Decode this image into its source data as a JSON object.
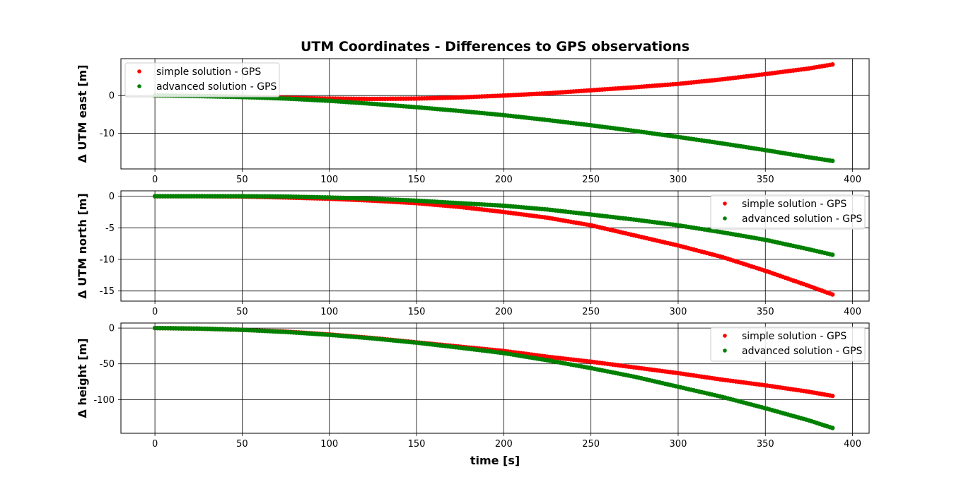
{
  "title": "UTM Coordinates - Differences to GPS observations",
  "xlabel": "time [s]",
  "colors": {
    "simple": "#ff0000",
    "advanced": "#008000",
    "grid": "#000000",
    "frame": "#000000"
  },
  "chart_data": [
    {
      "type": "scatter",
      "ylabel": "Δ UTM east [m]",
      "xlim": [
        -19.5,
        409.5
      ],
      "ylim": [
        -19.5,
        9.8
      ],
      "xticks": [
        0,
        50,
        100,
        150,
        200,
        250,
        300,
        350,
        400
      ],
      "yticks": [
        0,
        -10
      ],
      "grid": true,
      "legend_position": "upper-left",
      "series": [
        {
          "name": "simple solution - GPS",
          "color": "#ff0000",
          "x": [
            0,
            25,
            50,
            75,
            100,
            125,
            150,
            175,
            200,
            225,
            250,
            275,
            300,
            325,
            350,
            375,
            389
          ],
          "y": [
            0,
            -0.1,
            -0.3,
            -0.6,
            -0.8,
            -0.9,
            -0.8,
            -0.5,
            0.0,
            0.6,
            1.4,
            2.2,
            3.1,
            4.3,
            5.7,
            7.2,
            8.3
          ]
        },
        {
          "name": "advanced solution - GPS",
          "color": "#008000",
          "x": [
            0,
            25,
            50,
            75,
            100,
            125,
            150,
            175,
            200,
            225,
            250,
            275,
            300,
            325,
            350,
            375,
            389
          ],
          "y": [
            0,
            -0.15,
            -0.4,
            -0.8,
            -1.4,
            -2.2,
            -3.1,
            -4.1,
            -5.2,
            -6.5,
            -7.9,
            -9.4,
            -11.0,
            -12.7,
            -14.5,
            -16.4,
            -17.4
          ]
        }
      ]
    },
    {
      "type": "scatter",
      "ylabel": "Δ UTM north [m]",
      "xlim": [
        -19.5,
        409.5
      ],
      "ylim": [
        -16.6,
        0.85
      ],
      "xticks": [
        0,
        50,
        100,
        150,
        200,
        250,
        300,
        350,
        400
      ],
      "yticks": [
        0,
        -5,
        -10,
        -15
      ],
      "grid": true,
      "legend_position": "upper-right",
      "series": [
        {
          "name": "simple solution - GPS",
          "color": "#ff0000",
          "x": [
            0,
            25,
            50,
            75,
            100,
            125,
            150,
            175,
            200,
            225,
            250,
            275,
            300,
            325,
            350,
            375,
            389
          ],
          "y": [
            0,
            0,
            -0.05,
            -0.2,
            -0.4,
            -0.7,
            -1.1,
            -1.7,
            -2.5,
            -3.4,
            -4.6,
            -6.2,
            -7.8,
            -9.6,
            -11.8,
            -14.2,
            -15.6
          ]
        },
        {
          "name": "advanced solution - GPS",
          "color": "#008000",
          "x": [
            0,
            25,
            50,
            75,
            100,
            125,
            150,
            175,
            200,
            225,
            250,
            275,
            300,
            325,
            350,
            375,
            389
          ],
          "y": [
            0,
            0,
            0,
            -0.05,
            -0.2,
            -0.4,
            -0.7,
            -1.1,
            -1.5,
            -2.1,
            -2.9,
            -3.7,
            -4.6,
            -5.7,
            -6.9,
            -8.4,
            -9.3
          ]
        }
      ]
    },
    {
      "type": "scatter",
      "ylabel": "Δ height [m]",
      "xlim": [
        -19.5,
        409.5
      ],
      "ylim": [
        -147,
        7
      ],
      "xticks": [
        0,
        50,
        100,
        150,
        200,
        250,
        300,
        350,
        400
      ],
      "yticks": [
        0,
        -50,
        -100
      ],
      "grid": true,
      "legend_position": "upper-right",
      "series": [
        {
          "name": "simple solution - GPS",
          "color": "#ff0000",
          "x": [
            0,
            25,
            50,
            75,
            100,
            125,
            150,
            175,
            200,
            225,
            250,
            275,
            300,
            325,
            350,
            375,
            389
          ],
          "y": [
            0,
            -0.8,
            -2.5,
            -5,
            -9,
            -14,
            -20,
            -26,
            -32,
            -40,
            -47,
            -55,
            -63,
            -72,
            -80,
            -89,
            -95
          ]
        },
        {
          "name": "advanced solution - GPS",
          "color": "#008000",
          "x": [
            0,
            25,
            50,
            75,
            100,
            125,
            150,
            175,
            200,
            225,
            250,
            275,
            300,
            325,
            350,
            375,
            389
          ],
          "y": [
            0,
            -0.8,
            -2.5,
            -5.5,
            -9.5,
            -14.5,
            -20.5,
            -27.5,
            -35,
            -45,
            -56,
            -68,
            -82,
            -96,
            -112,
            -129,
            -140
          ]
        }
      ]
    }
  ]
}
